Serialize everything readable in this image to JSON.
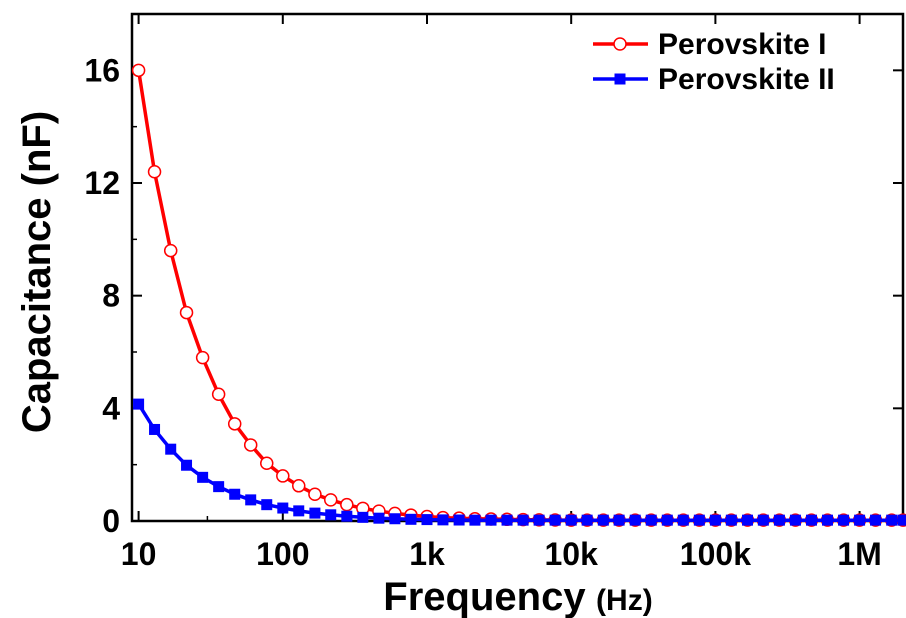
{
  "chart_data": {
    "type": "line",
    "x_scale": "log",
    "xlabel": "Frequency",
    "xlabel_unit": "(Hz)",
    "ylabel": "Capacitance (nF)",
    "xlim": [
      9,
      2000000
    ],
    "ylim": [
      0,
      18
    ],
    "xticks": [
      {
        "value": 10,
        "label": "10"
      },
      {
        "value": 100,
        "label": "100"
      },
      {
        "value": 1000,
        "label": "1k"
      },
      {
        "value": 10000,
        "label": "10k"
      },
      {
        "value": 100000,
        "label": "100k"
      },
      {
        "value": 1000000,
        "label": "1M"
      }
    ],
    "yticks": [
      {
        "value": 0,
        "label": "0"
      },
      {
        "value": 4,
        "label": "4"
      },
      {
        "value": 8,
        "label": "8"
      },
      {
        "value": 12,
        "label": "12"
      },
      {
        "value": 16,
        "label": "16"
      }
    ],
    "legend_position": "top-right",
    "grid": false,
    "x": [
      10,
      12.9,
      16.7,
      21.5,
      27.8,
      35.9,
      46.4,
      59.9,
      77.4,
      100,
      129,
      167,
      215,
      278,
      359,
      464,
      599,
      774,
      1000,
      1290,
      1670,
      2150,
      2780,
      3590,
      4640,
      5990,
      7740,
      10000,
      12900,
      16700,
      21500,
      27800,
      35900,
      46400,
      59900,
      77400,
      100000,
      129000,
      167000,
      215000,
      278000,
      359000,
      464000,
      599000,
      774000,
      1000000,
      1290000,
      1670000,
      2000000
    ],
    "series": [
      {
        "name": "Perovskite I",
        "color": "#ff0000",
        "marker": "open-circle",
        "values": [
          16.0,
          12.4,
          9.6,
          7.4,
          5.8,
          4.5,
          3.45,
          2.7,
          2.05,
          1.6,
          1.25,
          0.95,
          0.75,
          0.58,
          0.45,
          0.35,
          0.27,
          0.21,
          0.16,
          0.12,
          0.1,
          0.08,
          0.07,
          0.06,
          0.05,
          0.04,
          0.035,
          0.03,
          0.03,
          0.03,
          0.03,
          0.03,
          0.03,
          0.03,
          0.03,
          0.03,
          0.03,
          0.03,
          0.03,
          0.03,
          0.03,
          0.03,
          0.03,
          0.03,
          0.03,
          0.03,
          0.03,
          0.03,
          0.03
        ]
      },
      {
        "name": "Perovskite II",
        "color": "#0000ff",
        "marker": "filled-square",
        "values": [
          4.15,
          3.25,
          2.55,
          1.98,
          1.55,
          1.22,
          0.95,
          0.75,
          0.58,
          0.46,
          0.36,
          0.28,
          0.22,
          0.17,
          0.13,
          0.1,
          0.08,
          0.06,
          0.05,
          0.04,
          0.035,
          0.03,
          0.03,
          0.03,
          0.03,
          0.03,
          0.03,
          0.03,
          0.03,
          0.03,
          0.03,
          0.03,
          0.03,
          0.03,
          0.03,
          0.03,
          0.03,
          0.03,
          0.03,
          0.03,
          0.03,
          0.03,
          0.03,
          0.03,
          0.03,
          0.03,
          0.03,
          0.03,
          0.03
        ]
      }
    ]
  }
}
